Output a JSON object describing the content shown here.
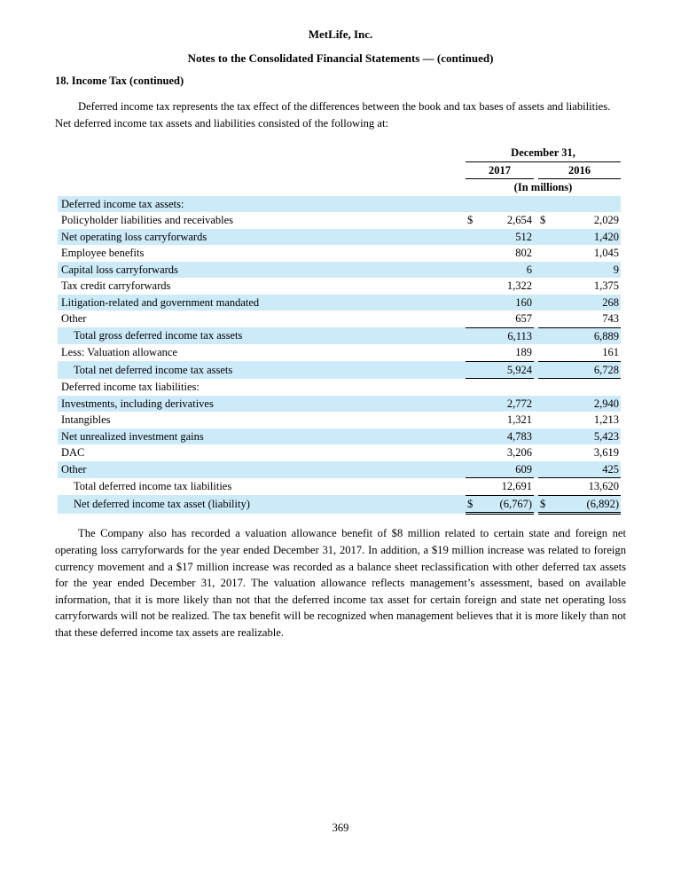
{
  "header": {
    "company": "MetLife, Inc.",
    "notes_title": "Notes to the Consolidated Financial Statements — (continued)",
    "section_heading": "18. Income Tax (continued)"
  },
  "paragraphs": {
    "intro": "Deferred income tax represents the tax effect of the differences between the book and tax bases of assets and liabilities. Net deferred income tax assets and liabilities consisted of the following at:",
    "closing": "The Company also has recorded a valuation allowance benefit of $8 million related to certain state and foreign net operating loss carryforwards for the year ended December 31, 2017. In addition, a $19 million increase was related to foreign currency movement and a $17 million increase was recorded as a balance sheet reclassification with other deferred tax assets for the year ended December 31, 2017. The valuation allowance reflects management’s assessment, based on available information, that it is more likely than not that the deferred income tax asset for certain foreign and state net operating loss carryforwards will not be realized. The tax benefit will be recognized when management believes that it is more likely than not that these deferred income tax assets are realizable."
  },
  "table": {
    "header": {
      "date_label": "December 31,",
      "year1": "2017",
      "year2": "2016",
      "units_label": "(In millions)"
    },
    "rows": [
      {
        "label": "Deferred income tax assets:",
        "indent": 0,
        "d1": "",
        "v1": "",
        "d2": "",
        "v2": "",
        "shaded": true,
        "rule": "none"
      },
      {
        "label": "Policyholder liabilities and receivables",
        "indent": 0,
        "d1": "$",
        "v1": "2,654",
        "d2": "$",
        "v2": "2,029",
        "shaded": false,
        "rule": "none"
      },
      {
        "label": "Net operating loss carryforwards",
        "indent": 0,
        "d1": "",
        "v1": "512",
        "d2": "",
        "v2": "1,420",
        "shaded": true,
        "rule": "none"
      },
      {
        "label": "Employee benefits",
        "indent": 0,
        "d1": "",
        "v1": "802",
        "d2": "",
        "v2": "1,045",
        "shaded": false,
        "rule": "none"
      },
      {
        "label": "Capital loss carryforwards",
        "indent": 0,
        "d1": "",
        "v1": "6",
        "d2": "",
        "v2": "9",
        "shaded": true,
        "rule": "none"
      },
      {
        "label": "Tax credit carryforwards",
        "indent": 0,
        "d1": "",
        "v1": "1,322",
        "d2": "",
        "v2": "1,375",
        "shaded": false,
        "rule": "none"
      },
      {
        "label": "Litigation-related and government mandated",
        "indent": 0,
        "d1": "",
        "v1": "160",
        "d2": "",
        "v2": "268",
        "shaded": true,
        "rule": "none"
      },
      {
        "label": "Other",
        "indent": 0,
        "d1": "",
        "v1": "657",
        "d2": "",
        "v2": "743",
        "shaded": false,
        "rule": "bottom"
      },
      {
        "label": "Total gross deferred income tax assets",
        "indent": 1,
        "d1": "",
        "v1": "6,113",
        "d2": "",
        "v2": "6,889",
        "shaded": true,
        "rule": "none"
      },
      {
        "label": "Less: Valuation allowance",
        "indent": 0,
        "d1": "",
        "v1": "189",
        "d2": "",
        "v2": "161",
        "shaded": false,
        "rule": "bottom"
      },
      {
        "label": "Total net deferred income tax assets",
        "indent": 1,
        "d1": "",
        "v1": "5,924",
        "d2": "",
        "v2": "6,728",
        "shaded": true,
        "rule": "bottom"
      },
      {
        "label": "Deferred income tax liabilities:",
        "indent": 0,
        "d1": "",
        "v1": "",
        "d2": "",
        "v2": "",
        "shaded": false,
        "rule": "none"
      },
      {
        "label": "Investments, including derivatives",
        "indent": 0,
        "d1": "",
        "v1": "2,772",
        "d2": "",
        "v2": "2,940",
        "shaded": true,
        "rule": "none"
      },
      {
        "label": "Intangibles",
        "indent": 0,
        "d1": "",
        "v1": "1,321",
        "d2": "",
        "v2": "1,213",
        "shaded": false,
        "rule": "none"
      },
      {
        "label": "Net unrealized investment gains",
        "indent": 0,
        "d1": "",
        "v1": "4,783",
        "d2": "",
        "v2": "5,423",
        "shaded": true,
        "rule": "none"
      },
      {
        "label": "DAC",
        "indent": 0,
        "d1": "",
        "v1": "3,206",
        "d2": "",
        "v2": "3,619",
        "shaded": false,
        "rule": "none"
      },
      {
        "label": "Other",
        "indent": 0,
        "d1": "",
        "v1": "609",
        "d2": "",
        "v2": "425",
        "shaded": true,
        "rule": "bottom"
      },
      {
        "label": "Total deferred income tax liabilities",
        "indent": 1,
        "d1": "",
        "v1": "12,691",
        "d2": "",
        "v2": "13,620",
        "shaded": false,
        "rule": "bottom"
      },
      {
        "label": "Net deferred income tax asset (liability)",
        "indent": 1,
        "d1": "$",
        "v1": "(6,767)",
        "d2": "$",
        "v2": "(6,892)",
        "shaded": true,
        "rule": "double"
      }
    ]
  },
  "footer": {
    "page_number": "369"
  },
  "colors": {
    "row_highlight": "#CDEAF8",
    "text": "#000000",
    "rule": "#000000"
  }
}
